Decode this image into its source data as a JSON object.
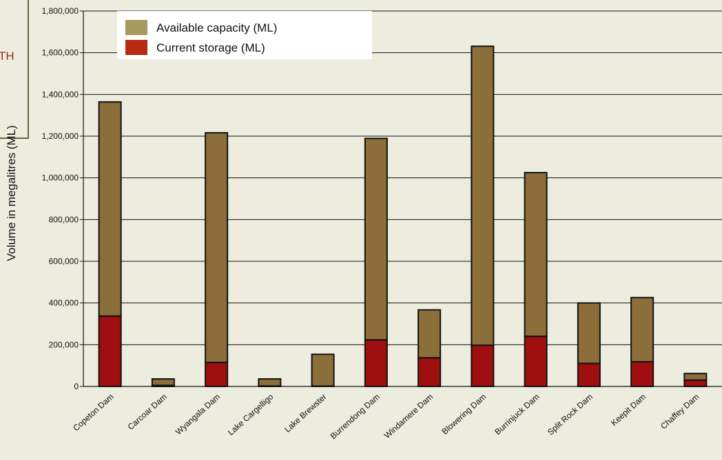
{
  "chart_data": {
    "type": "bar",
    "stacked": true,
    "title": "",
    "xlabel": "",
    "ylabel": "Volume in megalitres (ML)",
    "ylim": [
      0,
      1800000
    ],
    "yticks": [
      0,
      200000,
      400000,
      600000,
      800000,
      1000000,
      1200000,
      1400000,
      1600000,
      1800000
    ],
    "grid": true,
    "legend_position": "top-left",
    "categories": [
      "Copeton Dam",
      "Carcoar Dam",
      "Wyangala Dam",
      "Lake Cargelligo",
      "Lake Brewster",
      "Burrendong Dam",
      "Windamere Dam",
      "Blowering Dam",
      "Burrinjuck Dam",
      "Split Rock Dam",
      "Keepit Dam",
      "Chaffey Dam"
    ],
    "series": [
      {
        "name": "Current storage (ML)",
        "color": "#A00F0F",
        "legend_color": "#B52C12",
        "values": [
          337000,
          5000,
          115000,
          2000,
          1000,
          223000,
          137000,
          197000,
          240000,
          110000,
          118000,
          30000
        ]
      },
      {
        "name": "Available capacity (ML)",
        "color": "#8B6E3A",
        "legend_color": "#A69A5E",
        "values": [
          1027000,
          31000,
          1101000,
          34000,
          153000,
          966000,
          230000,
          1434000,
          785000,
          290000,
          308000,
          32000
        ]
      }
    ]
  },
  "callout": {
    "text": "TH"
  }
}
